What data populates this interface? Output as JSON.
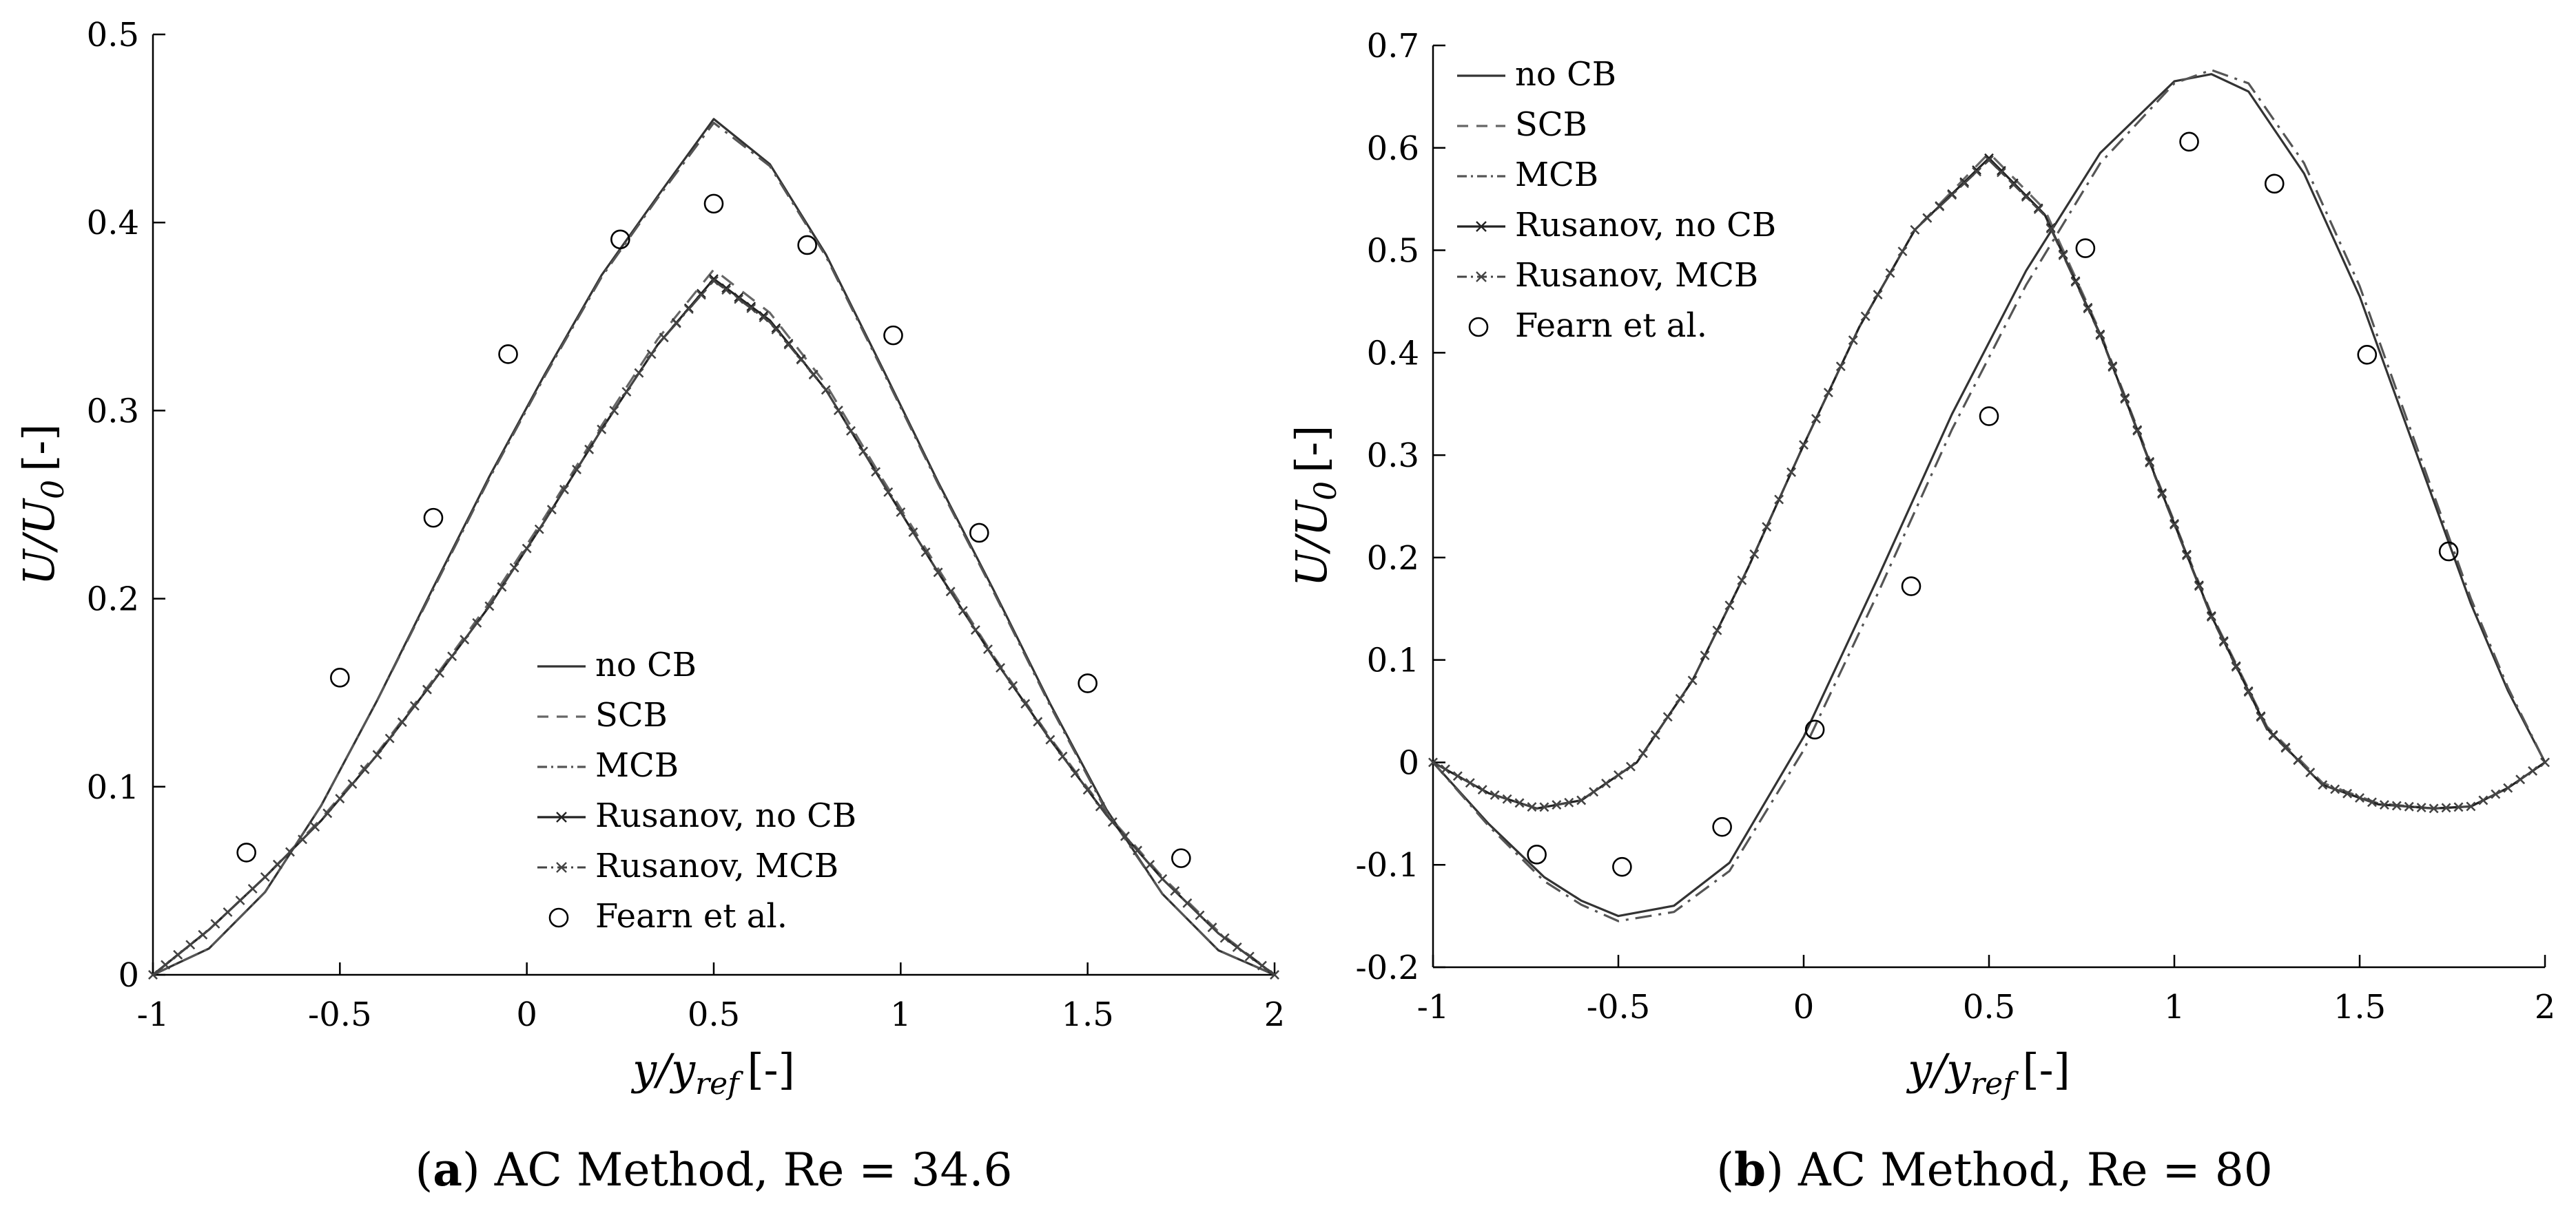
{
  "chart_data": [
    {
      "type": "line",
      "panel": "a",
      "caption_letter": "a",
      "caption_text": "AC Method, Re = 34.6",
      "xlabel": "y/y_ref [-]",
      "xlabel_main": "y/y",
      "xlabel_sub": "ref",
      "xlabel_unit": "[-]",
      "ylabel": "U/U_0 [-]",
      "ylabel_main": "U/U",
      "ylabel_sub": "0",
      "ylabel_unit": "[-]",
      "xlim": [
        -1,
        2
      ],
      "ylim": [
        0,
        0.5
      ],
      "xticks": [
        -1,
        -0.5,
        0,
        0.5,
        1,
        1.5,
        2
      ],
      "xtick_labels": [
        "-1",
        "-0.5",
        "0",
        "0.5",
        "1",
        "1.5",
        "2"
      ],
      "yticks": [
        0,
        0.1,
        0.2,
        0.3,
        0.4,
        0.5
      ],
      "ytick_labels": [
        "0",
        "0.1",
        "0.2",
        "0.3",
        "0.4",
        "0.5"
      ],
      "grid": false,
      "legend_position": "lower-center",
      "series": [
        {
          "name": "no CB",
          "style": "solid",
          "color": "#333333",
          "x": [
            -1,
            -0.85,
            -0.7,
            -0.55,
            -0.4,
            -0.25,
            -0.1,
            0.05,
            0.2,
            0.35,
            0.5,
            0.65,
            0.8,
            0.95,
            1.1,
            1.25,
            1.4,
            1.55,
            1.7,
            1.85,
            2
          ],
          "y": [
            0,
            0.014,
            0.044,
            0.09,
            0.146,
            0.206,
            0.265,
            0.32,
            0.372,
            0.414,
            0.455,
            0.431,
            0.383,
            0.323,
            0.262,
            0.204,
            0.144,
            0.088,
            0.043,
            0.013,
            0
          ]
        },
        {
          "name": "SCB",
          "style": "dashed",
          "color": "#666666",
          "x": [
            -1,
            -0.85,
            -0.7,
            -0.55,
            -0.4,
            -0.25,
            -0.1,
            0.05,
            0.2,
            0.35,
            0.5,
            0.65,
            0.8,
            0.95,
            1.1,
            1.25,
            1.4,
            1.55,
            1.7,
            1.85,
            2
          ],
          "y": [
            0,
            0.024,
            0.052,
            0.083,
            0.118,
            0.157,
            0.198,
            0.244,
            0.292,
            0.338,
            0.375,
            0.352,
            0.314,
            0.264,
            0.216,
            0.169,
            0.126,
            0.086,
            0.052,
            0.023,
            0
          ]
        },
        {
          "name": "MCB",
          "style": "dashdot",
          "color": "#555555",
          "x": [
            -1,
            -0.85,
            -0.7,
            -0.55,
            -0.4,
            -0.25,
            -0.1,
            0.05,
            0.2,
            0.35,
            0.5,
            0.65,
            0.8,
            0.95,
            1.1,
            1.25,
            1.4,
            1.55,
            1.7,
            1.85,
            2
          ],
          "y": [
            0,
            0.014,
            0.044,
            0.09,
            0.146,
            0.205,
            0.264,
            0.319,
            0.371,
            0.413,
            0.453,
            0.43,
            0.382,
            0.322,
            0.261,
            0.203,
            0.143,
            0.087,
            0.043,
            0.013,
            0
          ]
        },
        {
          "name": "Rusanov, no CB",
          "style": "solid-x",
          "color": "#222222",
          "x": [
            -1,
            -0.85,
            -0.7,
            -0.55,
            -0.4,
            -0.25,
            -0.1,
            0.05,
            0.2,
            0.35,
            0.5,
            0.65,
            0.8,
            0.95,
            1.1,
            1.25,
            1.4,
            1.55,
            1.7,
            1.85,
            2
          ],
          "y": [
            0,
            0.024,
            0.052,
            0.082,
            0.117,
            0.156,
            0.196,
            0.242,
            0.29,
            0.335,
            0.37,
            0.348,
            0.311,
            0.262,
            0.214,
            0.168,
            0.125,
            0.085,
            0.051,
            0.022,
            0
          ]
        },
        {
          "name": "Rusanov, MCB",
          "style": "dashdot-x",
          "color": "#444444",
          "x": [
            -1,
            -0.85,
            -0.7,
            -0.55,
            -0.4,
            -0.25,
            -0.1,
            0.05,
            0.2,
            0.35,
            0.5,
            0.65,
            0.8,
            0.95,
            1.1,
            1.25,
            1.4,
            1.55,
            1.7,
            1.85,
            2
          ],
          "y": [
            0,
            0.024,
            0.052,
            0.082,
            0.117,
            0.156,
            0.196,
            0.242,
            0.29,
            0.335,
            0.369,
            0.347,
            0.311,
            0.262,
            0.214,
            0.168,
            0.125,
            0.085,
            0.051,
            0.022,
            0
          ]
        },
        {
          "name": "Fearn et al.",
          "style": "circles",
          "color": "#000000",
          "x": [
            -0.75,
            -0.5,
            -0.25,
            -0.05,
            0.25,
            0.5,
            0.75,
            0.98,
            1.21,
            1.5,
            1.75
          ],
          "y": [
            0.065,
            0.158,
            0.243,
            0.33,
            0.391,
            0.41,
            0.388,
            0.34,
            0.235,
            0.155,
            0.062
          ]
        }
      ]
    },
    {
      "type": "line",
      "panel": "b",
      "caption_letter": "b",
      "caption_text": "AC Method, Re = 80",
      "xlabel": "y/y_ref [-]",
      "xlabel_main": "y/y",
      "xlabel_sub": "ref",
      "xlabel_unit": "[-]",
      "ylabel": "U/U_0 [-]",
      "ylabel_main": "U/U",
      "ylabel_sub": "0",
      "ylabel_unit": "[-]",
      "xlim": [
        -1,
        2
      ],
      "ylim": [
        -0.2,
        0.7
      ],
      "xticks": [
        -1,
        -0.5,
        0,
        0.5,
        1,
        1.5,
        2
      ],
      "xtick_labels": [
        "-1",
        "-0.5",
        "0",
        "0.5",
        "1",
        "1.5",
        "2"
      ],
      "yticks": [
        -0.2,
        -0.1,
        0,
        0.1,
        0.2,
        0.3,
        0.4,
        0.5,
        0.6,
        0.7
      ],
      "ytick_labels": [
        "-0.2",
        "-0.1",
        "0",
        "0.1",
        "0.2",
        "0.3",
        "0.4",
        "0.5",
        "0.6",
        "0.7"
      ],
      "grid": false,
      "legend_position": "top-left",
      "series": [
        {
          "name": "no CB",
          "style": "solid",
          "color": "#333333",
          "x": [
            -1,
            -0.85,
            -0.7,
            -0.6,
            -0.5,
            -0.35,
            -0.2,
            0,
            0.2,
            0.4,
            0.6,
            0.8,
            1,
            1.1,
            1.2,
            1.35,
            1.5,
            1.65,
            1.8,
            1.9,
            2
          ],
          "y": [
            0,
            -0.06,
            -0.112,
            -0.135,
            -0.15,
            -0.14,
            -0.098,
            0.025,
            0.18,
            0.34,
            0.48,
            0.595,
            0.665,
            0.672,
            0.655,
            0.575,
            0.455,
            0.305,
            0.155,
            0.07,
            0
          ]
        },
        {
          "name": "SCB",
          "style": "dashed",
          "color": "#666666",
          "x": [
            -1,
            -0.85,
            -0.72,
            -0.6,
            -0.45,
            -0.3,
            -0.15,
            0,
            0.15,
            0.3,
            0.5,
            0.65,
            0.8,
            0.95,
            1.1,
            1.25,
            1.4,
            1.55,
            1.7,
            1.8,
            1.9,
            2
          ],
          "y": [
            0,
            -0.03,
            -0.045,
            -0.037,
            0.0,
            0.08,
            0.19,
            0.31,
            0.425,
            0.52,
            0.595,
            0.54,
            0.42,
            0.28,
            0.145,
            0.035,
            -0.02,
            -0.04,
            -0.045,
            -0.043,
            -0.025,
            0
          ]
        },
        {
          "name": "MCB",
          "style": "dashdot",
          "color": "#555555",
          "x": [
            -1,
            -0.85,
            -0.7,
            -0.6,
            -0.5,
            -0.35,
            -0.2,
            0,
            0.2,
            0.4,
            0.6,
            0.8,
            1,
            1.1,
            1.2,
            1.35,
            1.5,
            1.65,
            1.8,
            1.9,
            2
          ],
          "y": [
            0,
            -0.062,
            -0.116,
            -0.139,
            -0.155,
            -0.146,
            -0.106,
            0.012,
            0.165,
            0.325,
            0.466,
            0.585,
            0.663,
            0.676,
            0.663,
            0.585,
            0.465,
            0.312,
            0.16,
            0.073,
            0
          ]
        },
        {
          "name": "Rusanov, no CB",
          "style": "solid-x",
          "color": "#222222",
          "x": [
            -1,
            -0.85,
            -0.72,
            -0.6,
            -0.45,
            -0.3,
            -0.15,
            0,
            0.15,
            0.3,
            0.5,
            0.65,
            0.8,
            0.95,
            1.1,
            1.25,
            1.4,
            1.55,
            1.7,
            1.8,
            1.9,
            2
          ],
          "y": [
            0,
            -0.03,
            -0.045,
            -0.037,
            0.0,
            0.08,
            0.19,
            0.31,
            0.425,
            0.52,
            0.59,
            0.535,
            0.418,
            0.278,
            0.143,
            0.033,
            -0.022,
            -0.041,
            -0.045,
            -0.043,
            -0.025,
            0
          ]
        },
        {
          "name": "Rusanov, MCB",
          "style": "dashdot-x",
          "color": "#444444",
          "x": [
            -1,
            -0.85,
            -0.72,
            -0.6,
            -0.45,
            -0.3,
            -0.15,
            0,
            0.15,
            0.3,
            0.5,
            0.65,
            0.8,
            0.95,
            1.1,
            1.25,
            1.4,
            1.55,
            1.7,
            1.8,
            1.9,
            2
          ],
          "y": [
            0,
            -0.03,
            -0.045,
            -0.037,
            0.0,
            0.08,
            0.19,
            0.31,
            0.425,
            0.52,
            0.588,
            0.534,
            0.417,
            0.277,
            0.142,
            0.032,
            -0.022,
            -0.041,
            -0.045,
            -0.043,
            -0.025,
            0
          ]
        },
        {
          "name": "Fearn et al.",
          "style": "circles",
          "color": "#000000",
          "x": [
            -0.72,
            -0.49,
            -0.22,
            0.03,
            0.29,
            0.5,
            0.76,
            1.04,
            1.27,
            1.52,
            1.74
          ],
          "y": [
            -0.09,
            -0.102,
            -0.063,
            0.032,
            0.172,
            0.338,
            0.502,
            0.606,
            0.565,
            0.398,
            0.206
          ]
        }
      ]
    }
  ]
}
